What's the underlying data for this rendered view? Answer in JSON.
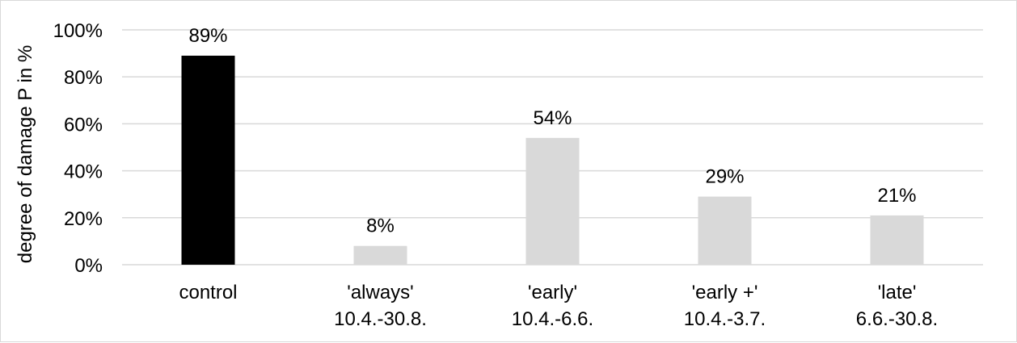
{
  "chart_data": {
    "type": "bar",
    "categories": [
      [
        "control"
      ],
      [
        "'always'",
        "10.4.-30.8."
      ],
      [
        "'early'",
        "10.4.-6.6."
      ],
      [
        "'early +'",
        "10.4.-3.7."
      ],
      [
        "'late'",
        "6.6.-30.8."
      ]
    ],
    "values": [
      89,
      8,
      54,
      29,
      21
    ],
    "data_labels": [
      "89%",
      "8%",
      "54%",
      "29%",
      "21%"
    ],
    "bar_colors": [
      "#000000",
      "#d9d9d9",
      "#d9d9d9",
      "#d9d9d9",
      "#d9d9d9"
    ],
    "ylabel": "degree of damage P in %",
    "xlabel": "",
    "ylim": [
      0,
      100
    ],
    "yticks": [
      0,
      20,
      40,
      60,
      80,
      100
    ],
    "ytick_labels": [
      "0%",
      "20%",
      "40%",
      "60%",
      "80%",
      "100%"
    ],
    "grid": true,
    "legend": "none",
    "gridline_color": "#d9d9d9"
  }
}
